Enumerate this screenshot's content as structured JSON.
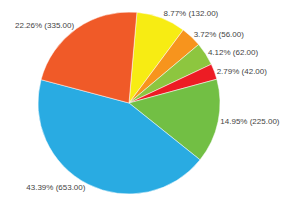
{
  "chart_data": {
    "type": "pie",
    "values": [
      132,
      56,
      62,
      42,
      225,
      653,
      335
    ],
    "value_labels": [
      "8.77% (132.00)",
      "3.72% (56.00)",
      "4.12% (62.00)",
      "2.79% (42.00)",
      "14.95% (225.00)",
      "43.39% (653.00)",
      "22.26% (335.00)"
    ],
    "colors": [
      "#F7EC13",
      "#F7941D",
      "#8DC63F",
      "#ED1C24",
      "#72BF44",
      "#29ABE2",
      "#F05A28"
    ],
    "data_labels": true
  }
}
